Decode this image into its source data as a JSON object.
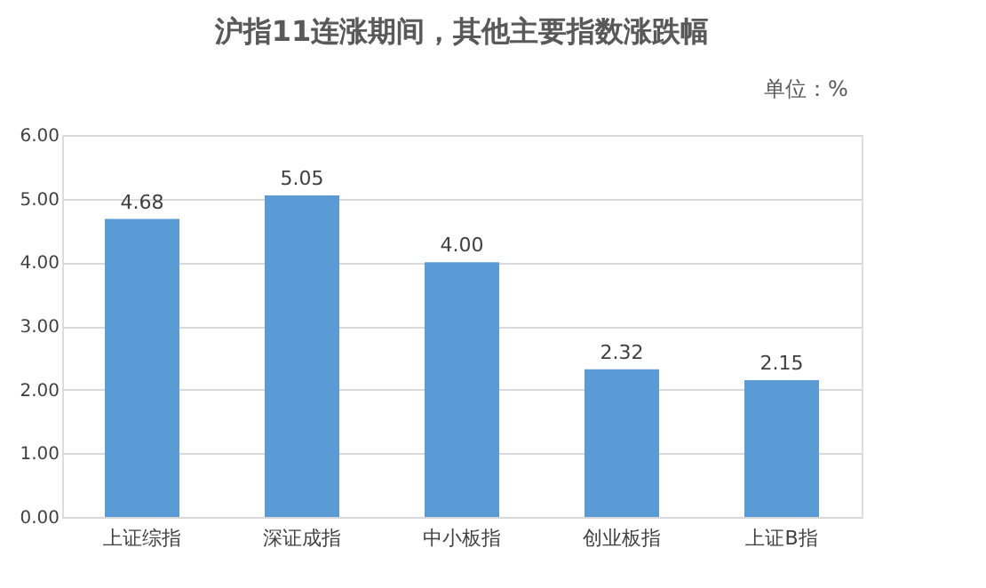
{
  "chart_data": {
    "type": "bar",
    "title": "沪指11连涨期间，其他主要指数涨跌幅",
    "annotations": [
      "单位：%"
    ],
    "categories": [
      "上证综指",
      "深证成指",
      "中小板指",
      "创业板指",
      "上证B指"
    ],
    "values": [
      4.68,
      5.05,
      4.0,
      2.32,
      2.15
    ],
    "value_labels": [
      "4.68",
      "5.05",
      "4.00",
      "2.32",
      "2.15"
    ],
    "color": "#5b9bd5",
    "ylim": [
      0,
      6
    ],
    "yticks": [
      {
        "value": 0,
        "label": "0.00"
      },
      {
        "value": 1,
        "label": "1.00"
      },
      {
        "value": 2,
        "label": "2.00"
      },
      {
        "value": 3,
        "label": "3.00"
      },
      {
        "value": 4,
        "label": "4.00"
      },
      {
        "value": 5,
        "label": "5.00"
      },
      {
        "value": 6,
        "label": "6.00"
      }
    ],
    "grid": "y",
    "legend": false
  }
}
